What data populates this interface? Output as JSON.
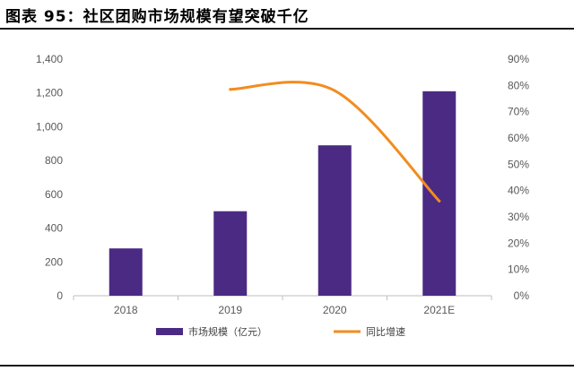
{
  "chart_data": {
    "type": "bar+line",
    "title": "图表 95：社区团购市场规模有望突破千亿",
    "categories": [
      "2018",
      "2019",
      "2020",
      "2021E"
    ],
    "series": [
      {
        "name": "市场规模（亿元）",
        "type": "bar",
        "axis": "left",
        "color": "#4B2A84",
        "values": [
          280,
          500,
          890,
          1210
        ]
      },
      {
        "name": "同比增速",
        "type": "line",
        "axis": "right",
        "color": "#F28C1E",
        "values": [
          null,
          78.5,
          78,
          36
        ]
      }
    ],
    "left_axis": {
      "min": 0,
      "max": 1400,
      "step": 200,
      "tick_labels": [
        "0",
        "200",
        "400",
        "600",
        "800",
        "1,000",
        "1,200",
        "1,400"
      ]
    },
    "right_axis": {
      "min": 0,
      "max": 90,
      "step": 10,
      "tick_labels": [
        "0%",
        "10%",
        "20%",
        "30%",
        "40%",
        "50%",
        "60%",
        "70%",
        "80%",
        "90%"
      ]
    },
    "legend_position": "bottom",
    "grid": false
  }
}
